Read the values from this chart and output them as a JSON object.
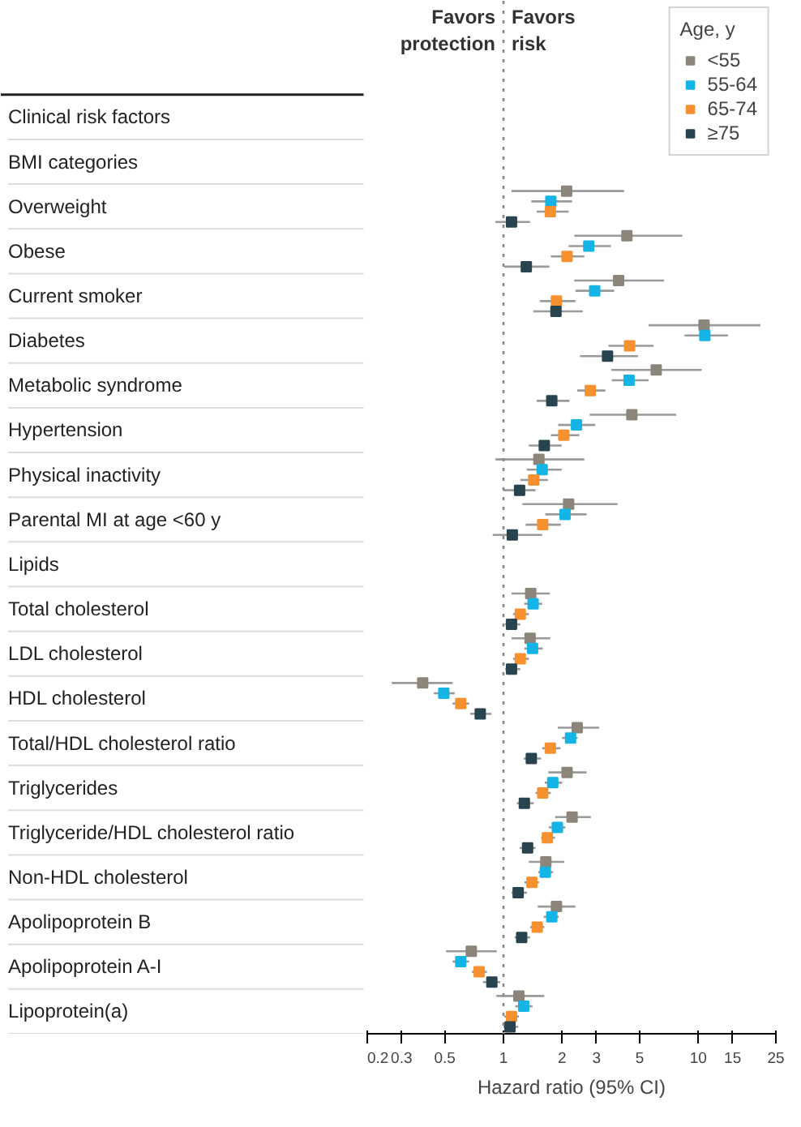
{
  "chart_data": {
    "type": "scatter",
    "orientation": "horizontal",
    "xlabel": "Hazard ratio (95% CI)",
    "legend_title": "Age, y",
    "legend": "top right",
    "marker": "square",
    "grid": false,
    "log": "x",
    "annotations": [
      "Favors protection",
      "Favors risk"
    ],
    "ref_lines": [
      {
        "axis": "x",
        "value": 1,
        "line_style": "dotted",
        "color": "#888888"
      }
    ],
    "xlim": [
      0.2,
      25
    ],
    "xticks": [
      0.2,
      0.3,
      0.5,
      1,
      2,
      3,
      5,
      10,
      15,
      25
    ],
    "categories": [
      "Clinical risk factors",
      "BMI categories",
      "Overweight",
      "Obese",
      "Current smoker",
      "Diabetes",
      "Metabolic syndrome",
      "Hypertension",
      "Physical inactivity",
      "Parental MI at age <60 y",
      "Lipids",
      "Total cholesterol",
      "LDL cholesterol",
      "HDL cholesterol",
      "Total/HDL cholesterol ratio",
      "Triglycerides",
      "Triglyceride/HDL cholesterol ratio",
      "Non-HDL cholesterol",
      "Apolipoprotein B",
      "Apolipoprotein A-I",
      "Lipoprotein(a)"
    ],
    "series": [
      {
        "name": "<55",
        "color": "#8c8579",
        "values": [
          null,
          null,
          2.11,
          4.3,
          3.9,
          10.7,
          6.08,
          4.56,
          1.52,
          2.16,
          null,
          1.38,
          1.37,
          0.385,
          2.39,
          2.12,
          2.25,
          1.65,
          1.87,
          0.684,
          1.2
        ],
        "errors": [
          null,
          null,
          [
            1.1,
            4.16
          ],
          [
            2.31,
            8.27
          ],
          [
            2.31,
            6.67
          ],
          [
            5.55,
            20.8
          ],
          [
            3.58,
            10.4
          ],
          [
            2.77,
            7.7
          ],
          [
            0.91,
            2.6
          ],
          [
            1.25,
            3.85
          ],
          null,
          [
            1.1,
            1.73
          ],
          [
            1.1,
            1.74
          ],
          [
            0.267,
            0.548
          ],
          [
            1.9,
            3.1
          ],
          [
            1.7,
            2.67
          ],
          [
            1.84,
            2.81
          ],
          [
            1.35,
            2.05
          ],
          [
            1.5,
            2.34
          ],
          [
            0.507,
            0.924
          ],
          [
            0.92,
            1.62
          ]
        ]
      },
      {
        "name": "55-64",
        "color": "#14b4e6",
        "values": [
          null,
          null,
          1.75,
          2.74,
          2.94,
          10.8,
          4.41,
          2.37,
          1.58,
          2.07,
          null,
          1.42,
          1.41,
          0.494,
          2.21,
          1.79,
          1.89,
          1.64,
          1.77,
          0.604,
          1.27
        ],
        "errors": [
          null,
          null,
          [
            1.39,
            2.25
          ],
          [
            2.16,
            3.56
          ],
          [
            2.34,
            3.7
          ],
          [
            8.49,
            14.2
          ],
          [
            3.6,
            5.55
          ],
          [
            1.91,
            2.96
          ],
          [
            1.32,
            1.99
          ],
          [
            1.64,
            2.67
          ],
          null,
          [
            1.28,
            1.58
          ],
          [
            1.28,
            1.59
          ],
          [
            0.439,
            0.562
          ],
          [
            2.0,
            2.4
          ],
          [
            1.63,
            2.0
          ],
          [
            1.71,
            2.08
          ],
          [
            1.51,
            1.8
          ],
          [
            1.61,
            1.92
          ],
          [
            0.548,
            0.667
          ],
          [
            1.15,
            1.41
          ]
        ]
      },
      {
        "name": "65-74",
        "color": "#f7902f",
        "values": [
          null,
          null,
          1.74,
          2.12,
          1.87,
          4.44,
          2.79,
          2.04,
          1.43,
          1.59,
          null,
          1.22,
          1.22,
          0.604,
          1.74,
          1.59,
          1.68,
          1.4,
          1.49,
          0.75,
          1.1
        ],
        "errors": [
          null,
          null,
          [
            1.48,
            2.16
          ],
          [
            1.75,
            2.6
          ],
          [
            1.54,
            2.34
          ],
          [
            3.46,
            5.89
          ],
          [
            2.39,
            3.33
          ],
          [
            1.75,
            2.45
          ],
          [
            1.22,
            1.69
          ],
          [
            1.3,
            1.97
          ],
          null,
          [
            1.12,
            1.35
          ],
          [
            1.12,
            1.35
          ],
          [
            0.548,
            0.667
          ],
          [
            1.58,
            1.96
          ],
          [
            1.46,
            1.75
          ],
          [
            1.56,
            1.84
          ],
          [
            1.28,
            1.52
          ],
          [
            1.37,
            1.62
          ],
          [
            0.689,
            0.822
          ],
          [
            1.01,
            1.2
          ]
        ]
      },
      {
        "name": "≥75",
        "color": "#27444f",
        "values": [
          null,
          null,
          1.1,
          1.31,
          1.86,
          3.42,
          1.77,
          1.62,
          1.21,
          1.11,
          null,
          1.1,
          1.1,
          0.76,
          1.39,
          1.28,
          1.33,
          1.19,
          1.24,
          0.872,
          1.08
        ],
        "errors": [
          null,
          null,
          [
            0.91,
            1.37
          ],
          [
            1.01,
            1.72
          ],
          [
            1.42,
            2.55
          ],
          [
            2.47,
            4.9
          ],
          [
            1.48,
            2.18
          ],
          [
            1.35,
            1.99
          ],
          [
            1.0,
            1.46
          ],
          [
            0.88,
            1.58
          ],
          null,
          [
            1.02,
            1.22
          ],
          [
            1.02,
            1.22
          ],
          [
            0.675,
            0.866
          ],
          [
            1.27,
            1.56
          ],
          [
            1.17,
            1.43
          ],
          [
            1.21,
            1.46
          ],
          [
            1.1,
            1.32
          ],
          [
            1.14,
            1.37
          ],
          [
            0.785,
            0.962
          ],
          [
            1.0,
            1.19
          ]
        ]
      }
    ]
  }
}
